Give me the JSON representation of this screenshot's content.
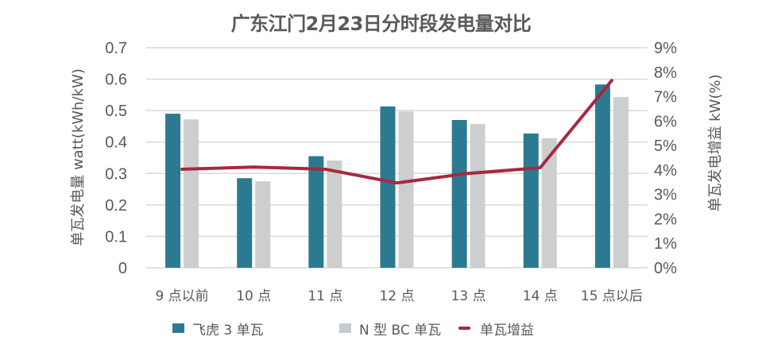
{
  "chart_data": {
    "type": "bar",
    "title": "广东江门2月23日分时段发电量对比",
    "categories": [
      "9 点以前",
      "10 点",
      "11 点",
      "12 点",
      "13 点",
      "14 点",
      "15 点以后"
    ],
    "series": [
      {
        "name": "飞虎 3 单瓦",
        "type": "bar",
        "axis": "left",
        "color": "#2b7a91",
        "values": [
          0.49,
          0.285,
          0.355,
          0.513,
          0.47,
          0.427,
          0.583
        ]
      },
      {
        "name": "N 型 BC 单瓦",
        "type": "bar",
        "axis": "left",
        "color": "#cdced0",
        "legend_color": "#c3ccd3",
        "values": [
          0.472,
          0.275,
          0.341,
          0.497,
          0.457,
          0.412,
          0.543
        ]
      },
      {
        "name": "单瓦增益",
        "type": "line",
        "axis": "right",
        "color": "#a8283f",
        "values": [
          4.03,
          4.12,
          4.03,
          3.47,
          3.86,
          4.09,
          7.66
        ]
      }
    ],
    "ylabel": "单瓦发电量 watt(kWh/kW)",
    "ylim": [
      0,
      0.7
    ],
    "yticks": [
      "0",
      "0.1",
      "0.2",
      "0.3",
      "0.4",
      "0.5",
      "0.6",
      "0.7"
    ],
    "y2label": "单瓦发电增益 kW(%)",
    "y2lim": [
      0,
      9
    ],
    "y2ticks": [
      "0%",
      "1%",
      "2%",
      "3%",
      "4%",
      "5%",
      "6%",
      "7%",
      "8%",
      "9%"
    ],
    "xlabel": "",
    "grid": true,
    "legend_position": "bottom"
  }
}
